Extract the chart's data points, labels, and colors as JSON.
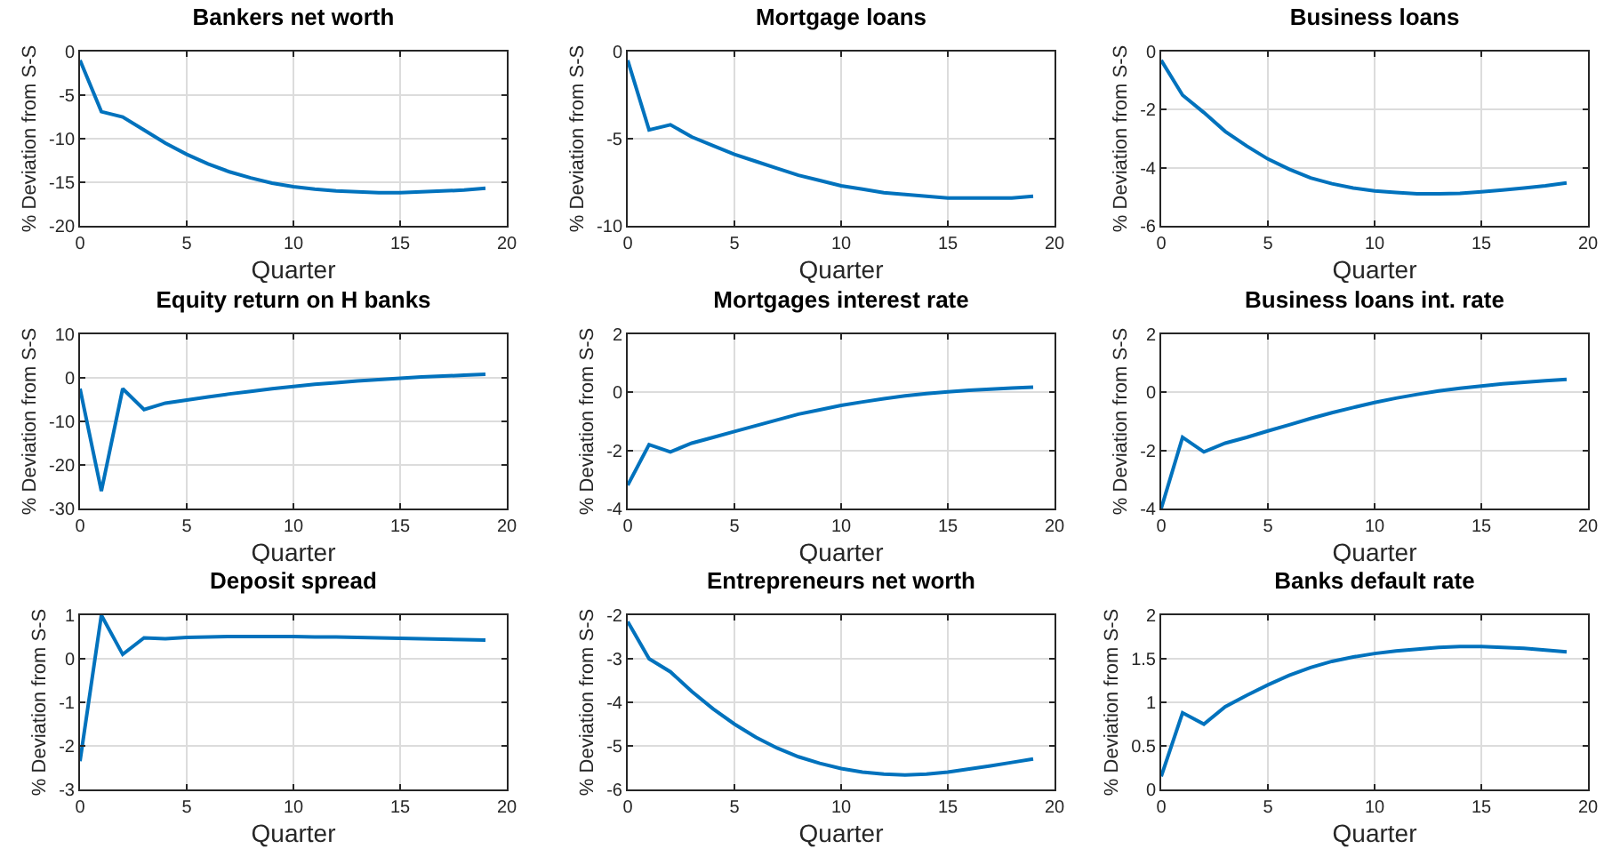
{
  "chart_data": [
    {
      "type": "line",
      "title": "Bankers net worth",
      "xlabel": "Quarter",
      "ylabel": "% Deviation from S-S",
      "color": "#0072bd",
      "grid": true,
      "xlim": [
        0,
        20
      ],
      "xticks": [
        0,
        5,
        10,
        15,
        20
      ],
      "ylim": [
        -20,
        0
      ],
      "yticks": [
        -20,
        -15,
        -10,
        -5,
        0
      ],
      "x": [
        0,
        1,
        2,
        3,
        4,
        5,
        6,
        7,
        8,
        9,
        10,
        11,
        12,
        13,
        14,
        15,
        16,
        17,
        18,
        19
      ],
      "values": [
        -1,
        -6.9,
        -7.5,
        -9,
        -10.5,
        -11.8,
        -12.9,
        -13.8,
        -14.5,
        -15.1,
        -15.5,
        -15.8,
        -16,
        -16.1,
        -16.2,
        -16.2,
        -16.1,
        -16,
        -15.9,
        -15.7
      ]
    },
    {
      "type": "line",
      "title": "Mortgage loans",
      "xlabel": "Quarter",
      "ylabel": "% Deviation from S-S",
      "color": "#0072bd",
      "grid": true,
      "xlim": [
        0,
        20
      ],
      "xticks": [
        0,
        5,
        10,
        15,
        20
      ],
      "ylim": [
        -10,
        0
      ],
      "yticks": [
        -10,
        -5,
        0
      ],
      "x": [
        0,
        1,
        2,
        3,
        4,
        5,
        6,
        7,
        8,
        9,
        10,
        11,
        12,
        13,
        14,
        15,
        16,
        17,
        18,
        19
      ],
      "values": [
        -0.5,
        -4.5,
        -4.2,
        -4.9,
        -5.4,
        -5.9,
        -6.3,
        -6.7,
        -7.1,
        -7.4,
        -7.7,
        -7.9,
        -8.1,
        -8.2,
        -8.3,
        -8.4,
        -8.4,
        -8.4,
        -8.4,
        -8.3
      ]
    },
    {
      "type": "line",
      "title": "Business loans",
      "xlabel": "Quarter",
      "ylabel": "% Deviation from S-S",
      "color": "#0072bd",
      "grid": true,
      "xlim": [
        0,
        20
      ],
      "xticks": [
        0,
        5,
        10,
        15,
        20
      ],
      "ylim": [
        -6,
        0
      ],
      "yticks": [
        -6,
        -4,
        -2,
        0
      ],
      "x": [
        0,
        1,
        2,
        3,
        4,
        5,
        6,
        7,
        8,
        9,
        10,
        11,
        12,
        13,
        14,
        15,
        16,
        17,
        18,
        19
      ],
      "values": [
        -0.3,
        -1.5,
        -2.1,
        -2.75,
        -3.25,
        -3.7,
        -4.05,
        -4.35,
        -4.55,
        -4.7,
        -4.8,
        -4.85,
        -4.9,
        -4.9,
        -4.88,
        -4.83,
        -4.77,
        -4.7,
        -4.62,
        -4.52
      ]
    },
    {
      "type": "line",
      "title": "Equity return on H banks",
      "xlabel": "Quarter",
      "ylabel": "% Deviation from S-S",
      "color": "#0072bd",
      "grid": true,
      "xlim": [
        0,
        20
      ],
      "xticks": [
        0,
        5,
        10,
        15,
        20
      ],
      "ylim": [
        -30,
        10
      ],
      "yticks": [
        -30,
        -20,
        -10,
        0,
        10
      ],
      "x": [
        0,
        1,
        2,
        3,
        4,
        5,
        6,
        7,
        8,
        9,
        10,
        11,
        12,
        13,
        14,
        15,
        16,
        17,
        18,
        19
      ],
      "values": [
        -2.5,
        -26,
        -2.5,
        -7.3,
        -5.8,
        -5.1,
        -4.4,
        -3.7,
        -3.1,
        -2.5,
        -2,
        -1.5,
        -1.1,
        -0.7,
        -0.4,
        -0.1,
        0.2,
        0.4,
        0.6,
        0.8
      ]
    },
    {
      "type": "line",
      "title": "Mortgages interest rate",
      "xlabel": "Quarter",
      "ylabel": "% Deviation from S-S",
      "color": "#0072bd",
      "grid": true,
      "xlim": [
        0,
        20
      ],
      "xticks": [
        0,
        5,
        10,
        15,
        20
      ],
      "ylim": [
        -4,
        2
      ],
      "yticks": [
        -4,
        -2,
        0,
        2
      ],
      "x": [
        0,
        1,
        2,
        3,
        4,
        5,
        6,
        7,
        8,
        9,
        10,
        11,
        12,
        13,
        14,
        15,
        16,
        17,
        18,
        19
      ],
      "values": [
        -3.2,
        -1.8,
        -2.05,
        -1.75,
        -1.55,
        -1.35,
        -1.15,
        -0.95,
        -0.75,
        -0.6,
        -0.45,
        -0.33,
        -0.22,
        -0.12,
        -0.04,
        0.02,
        0.07,
        0.11,
        0.15,
        0.18
      ]
    },
    {
      "type": "line",
      "title": "Business loans int. rate",
      "xlabel": "Quarter",
      "ylabel": "% Deviation from S-S",
      "color": "#0072bd",
      "grid": true,
      "xlim": [
        0,
        20
      ],
      "xticks": [
        0,
        5,
        10,
        15,
        20
      ],
      "ylim": [
        -4,
        2
      ],
      "yticks": [
        -4,
        -2,
        0,
        2
      ],
      "x": [
        0,
        1,
        2,
        3,
        4,
        5,
        6,
        7,
        8,
        9,
        10,
        11,
        12,
        13,
        14,
        15,
        16,
        17,
        18,
        19
      ],
      "values": [
        -4,
        -1.55,
        -2.05,
        -1.75,
        -1.55,
        -1.33,
        -1.12,
        -0.9,
        -0.7,
        -0.52,
        -0.35,
        -0.2,
        -0.07,
        0.05,
        0.14,
        0.22,
        0.29,
        0.35,
        0.4,
        0.45
      ]
    },
    {
      "type": "line",
      "title": "Deposit spread",
      "xlabel": "Quarter",
      "ylabel": "% Deviation from S-S",
      "color": "#0072bd",
      "grid": true,
      "xlim": [
        0,
        20
      ],
      "xticks": [
        0,
        5,
        10,
        15,
        20
      ],
      "ylim": [
        -3,
        1
      ],
      "yticks": [
        -3,
        -2,
        -1,
        0,
        1
      ],
      "x": [
        0,
        1,
        2,
        3,
        4,
        5,
        6,
        7,
        8,
        9,
        10,
        11,
        12,
        13,
        14,
        15,
        16,
        17,
        18,
        19
      ],
      "values": [
        -2.35,
        1,
        0.1,
        0.48,
        0.46,
        0.49,
        0.5,
        0.51,
        0.51,
        0.51,
        0.51,
        0.5,
        0.5,
        0.49,
        0.48,
        0.47,
        0.46,
        0.45,
        0.44,
        0.43
      ]
    },
    {
      "type": "line",
      "title": "Entrepreneurs net worth",
      "xlabel": "Quarter",
      "ylabel": "% Deviation from S-S",
      "color": "#0072bd",
      "grid": true,
      "xlim": [
        0,
        20
      ],
      "xticks": [
        0,
        5,
        10,
        15,
        20
      ],
      "ylim": [
        -6,
        -2
      ],
      "yticks": [
        -6,
        -5,
        -4,
        -3,
        -2
      ],
      "x": [
        0,
        1,
        2,
        3,
        4,
        5,
        6,
        7,
        8,
        9,
        10,
        11,
        12,
        13,
        14,
        15,
        16,
        17,
        18,
        19
      ],
      "values": [
        -2.15,
        -3,
        -3.3,
        -3.75,
        -4.15,
        -4.5,
        -4.8,
        -5.05,
        -5.25,
        -5.4,
        -5.52,
        -5.6,
        -5.65,
        -5.67,
        -5.65,
        -5.6,
        -5.53,
        -5.46,
        -5.38,
        -5.3
      ]
    },
    {
      "type": "line",
      "title": "Banks default rate",
      "xlabel": "Quarter",
      "ylabel": "% Deviation from S-S",
      "color": "#0072bd",
      "grid": true,
      "xlim": [
        0,
        20
      ],
      "xticks": [
        0,
        5,
        10,
        15,
        20
      ],
      "ylim": [
        0,
        2
      ],
      "yticks": [
        0,
        0.5,
        1,
        1.5,
        2
      ],
      "x": [
        0,
        1,
        2,
        3,
        4,
        5,
        6,
        7,
        8,
        9,
        10,
        11,
        12,
        13,
        14,
        15,
        16,
        17,
        18,
        19
      ],
      "values": [
        0.15,
        0.88,
        0.75,
        0.95,
        1.08,
        1.2,
        1.31,
        1.4,
        1.47,
        1.52,
        1.56,
        1.59,
        1.61,
        1.63,
        1.64,
        1.64,
        1.63,
        1.62,
        1.6,
        1.58
      ]
    }
  ]
}
